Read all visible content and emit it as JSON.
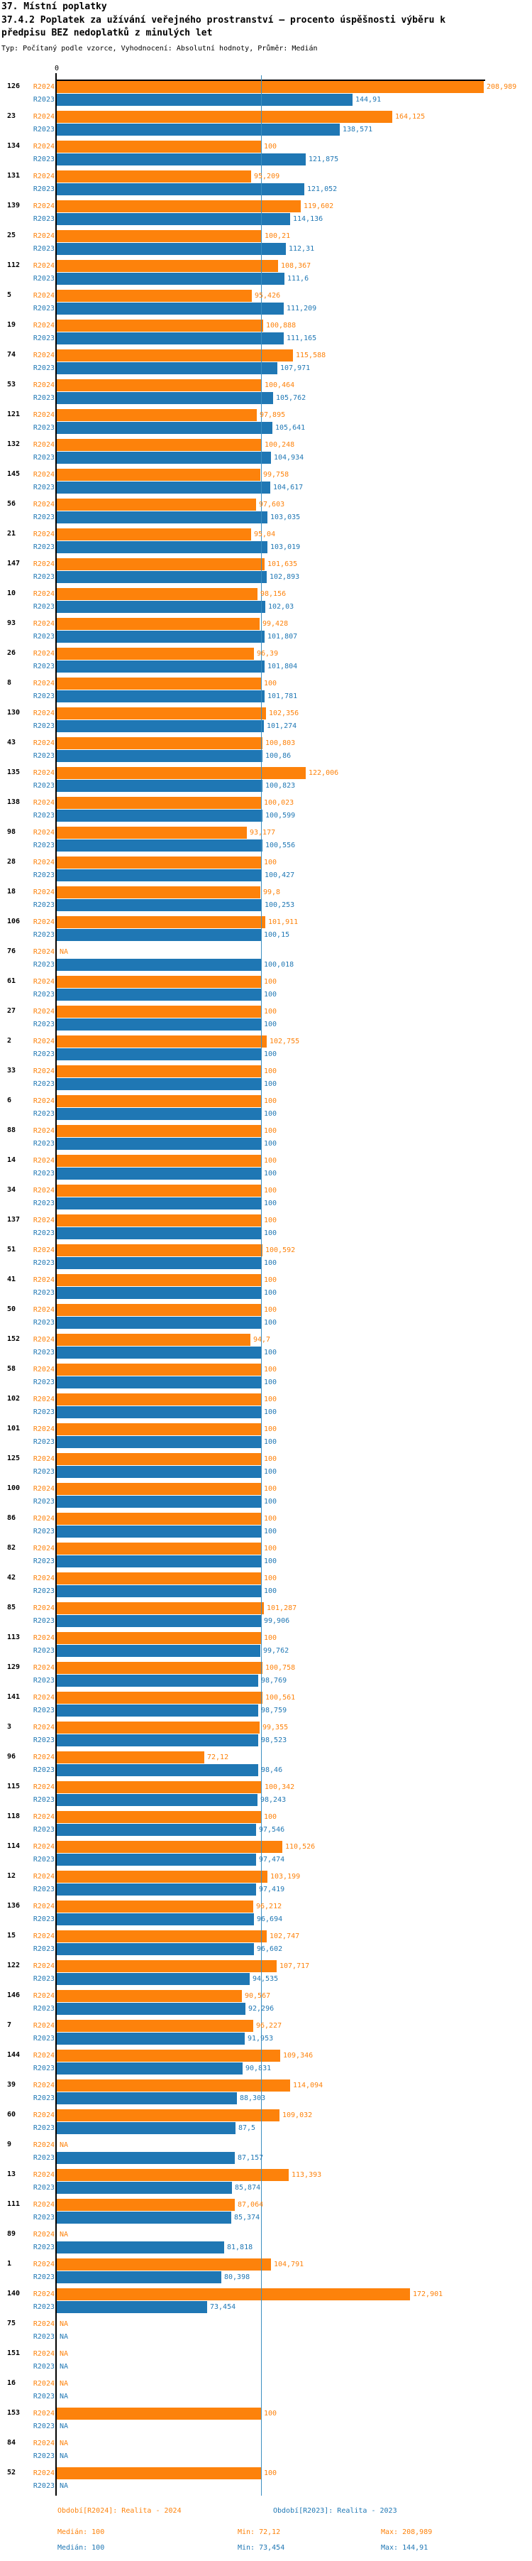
{
  "header": {
    "title": "37. Místní poplatky",
    "subtitle_line1": "37.4.2 Poplatek za užívání veřejného prostranství – procento úspěšnosti výběru k",
    "subtitle_line2": "předpisu BEZ nedoplatků z minulých let",
    "meta": "Typ: Počítaný podle vzorce, Vyhodnocení: Absolutní hodnoty, Průměr: Medián"
  },
  "axis": {
    "zero_label": "0"
  },
  "colors": {
    "r2024": "#fd820b",
    "r2023": "#1f77b4",
    "median_line": "#3d8fc0",
    "axis": "#000000"
  },
  "footer": {
    "legend_r2024": "Období[R2024]: Realita - 2024",
    "legend_r2023": "Období[R2023]: Realita - 2023",
    "r2024_stats": {
      "median": "Medián: 100",
      "min": "Min: 72,12",
      "max": "Max: 208,989"
    },
    "r2023_stats": {
      "median": "Medián: 100",
      "min": "Min: 73,454",
      "max": "Max: 144,91"
    }
  },
  "chart_data": {
    "type": "bar",
    "orientation": "horizontal",
    "title": "37.4.2 Poplatek za užívání veřejného prostranství – procento úspěšnosti výběru k předpisu BEZ nedoplatků z minulých let",
    "xlabel": "",
    "ylabel": "",
    "xlim": [
      0,
      230
    ],
    "median_reference": 100,
    "grid": false,
    "legend_position": "bottom",
    "na_label": "NA",
    "categories": [
      "126",
      "23",
      "134",
      "131",
      "139",
      "25",
      "112",
      "5",
      "19",
      "74",
      "53",
      "121",
      "132",
      "145",
      "56",
      "21",
      "147",
      "10",
      "93",
      "26",
      "8",
      "130",
      "43",
      "135",
      "138",
      "98",
      "28",
      "18",
      "106",
      "76",
      "61",
      "27",
      "2",
      "33",
      "6",
      "88",
      "14",
      "34",
      "137",
      "51",
      "41",
      "50",
      "152",
      "58",
      "102",
      "101",
      "125",
      "100",
      "86",
      "82",
      "42",
      "85",
      "113",
      "129",
      "141",
      "3",
      "96",
      "115",
      "118",
      "114",
      "12",
      "136",
      "15",
      "122",
      "146",
      "7",
      "144",
      "39",
      "60",
      "9",
      "13",
      "111",
      "89",
      "1",
      "140",
      "75",
      "151",
      "16",
      "153",
      "84",
      "52"
    ],
    "series": [
      {
        "name": "R2024",
        "color": "#fd820b",
        "values": [
          208.989,
          164.125,
          100,
          95.209,
          119.602,
          100.21,
          108.367,
          95.426,
          100.888,
          115.588,
          100.464,
          97.895,
          100.248,
          99.758,
          97.603,
          95.04,
          101.635,
          98.156,
          99.428,
          96.39,
          100,
          102.356,
          100.803,
          122.006,
          100.023,
          93.177,
          100,
          99.8,
          101.911,
          null,
          100,
          100,
          102.755,
          100,
          100,
          100,
          100,
          100,
          100,
          100.592,
          100,
          100,
          94.7,
          100,
          100,
          100,
          100,
          100,
          100,
          100,
          100,
          101.287,
          100,
          100.758,
          100.561,
          99.355,
          72.12,
          100.342,
          100,
          110.526,
          103.199,
          96.212,
          102.747,
          107.717,
          90.567,
          96.227,
          109.346,
          114.094,
          109.032,
          null,
          113.393,
          87.064,
          null,
          104.791,
          172.901,
          null,
          null,
          null,
          100,
          null,
          100
        ],
        "labels": [
          "208,989",
          "164,125",
          "100",
          "95,209",
          "119,602",
          "100,21",
          "108,367",
          "95,426",
          "100,888",
          "115,588",
          "100,464",
          "97,895",
          "100,248",
          "99,758",
          "97,603",
          "95,04",
          "101,635",
          "98,156",
          "99,428",
          "96,39",
          "100",
          "102,356",
          "100,803",
          "122,006",
          "100,023",
          "93,177",
          "100",
          "99,8",
          "101,911",
          "NA",
          "100",
          "100",
          "102,755",
          "100",
          "100",
          "100",
          "100",
          "100",
          "100",
          "100,592",
          "100",
          "100",
          "94,7",
          "100",
          "100",
          "100",
          "100",
          "100",
          "100",
          "100",
          "100",
          "101,287",
          "100",
          "100,758",
          "100,561",
          "99,355",
          "72,12",
          "100,342",
          "100",
          "110,526",
          "103,199",
          "96,212",
          "102,747",
          "107,717",
          "90,567",
          "96,227",
          "109,346",
          "114,094",
          "109,032",
          "NA",
          "113,393",
          "87,064",
          "NA",
          "104,791",
          "172,901",
          "NA",
          "NA",
          "NA",
          "100",
          "NA",
          "100"
        ]
      },
      {
        "name": "R2023",
        "color": "#1f77b4",
        "values": [
          144.91,
          138.571,
          121.875,
          121.052,
          114.136,
          112.31,
          111.6,
          111.209,
          111.165,
          107.971,
          105.762,
          105.641,
          104.934,
          104.617,
          103.035,
          103.019,
          102.893,
          102.03,
          101.807,
          101.804,
          101.781,
          101.274,
          100.86,
          100.823,
          100.599,
          100.556,
          100.427,
          100.253,
          100.15,
          100.018,
          100,
          100,
          100,
          100,
          100,
          100,
          100,
          100,
          100,
          100,
          100,
          100,
          100,
          100,
          100,
          100,
          100,
          100,
          100,
          100,
          100,
          99.906,
          99.762,
          98.769,
          98.759,
          98.523,
          98.46,
          98.243,
          97.546,
          97.474,
          97.419,
          96.694,
          96.602,
          94.535,
          92.296,
          91.953,
          90.831,
          88.303,
          87.5,
          87.157,
          85.874,
          85.374,
          81.818,
          80.398,
          73.454,
          null,
          null,
          null,
          null,
          null,
          null
        ],
        "labels": [
          "144,91",
          "138,571",
          "121,875",
          "121,052",
          "114,136",
          "112,31",
          "111,6",
          "111,209",
          "111,165",
          "107,971",
          "105,762",
          "105,641",
          "104,934",
          "104,617",
          "103,035",
          "103,019",
          "102,893",
          "102,03",
          "101,807",
          "101,804",
          "101,781",
          "101,274",
          "100,86",
          "100,823",
          "100,599",
          "100,556",
          "100,427",
          "100,253",
          "100,15",
          "100,018",
          "100",
          "100",
          "100",
          "100",
          "100",
          "100",
          "100",
          "100",
          "100",
          "100",
          "100",
          "100",
          "100",
          "100",
          "100",
          "100",
          "100",
          "100",
          "100",
          "100",
          "100",
          "99,906",
          "99,762",
          "98,769",
          "98,759",
          "98,523",
          "98,46",
          "98,243",
          "97,546",
          "97,474",
          "97,419",
          "96,694",
          "96,602",
          "94,535",
          "92,296",
          "91,953",
          "90,831",
          "88,303",
          "87,5",
          "87,157",
          "85,874",
          "85,374",
          "81,818",
          "80,398",
          "73,454",
          "NA",
          "NA",
          "NA",
          "NA",
          "NA",
          "NA"
        ]
      }
    ]
  }
}
